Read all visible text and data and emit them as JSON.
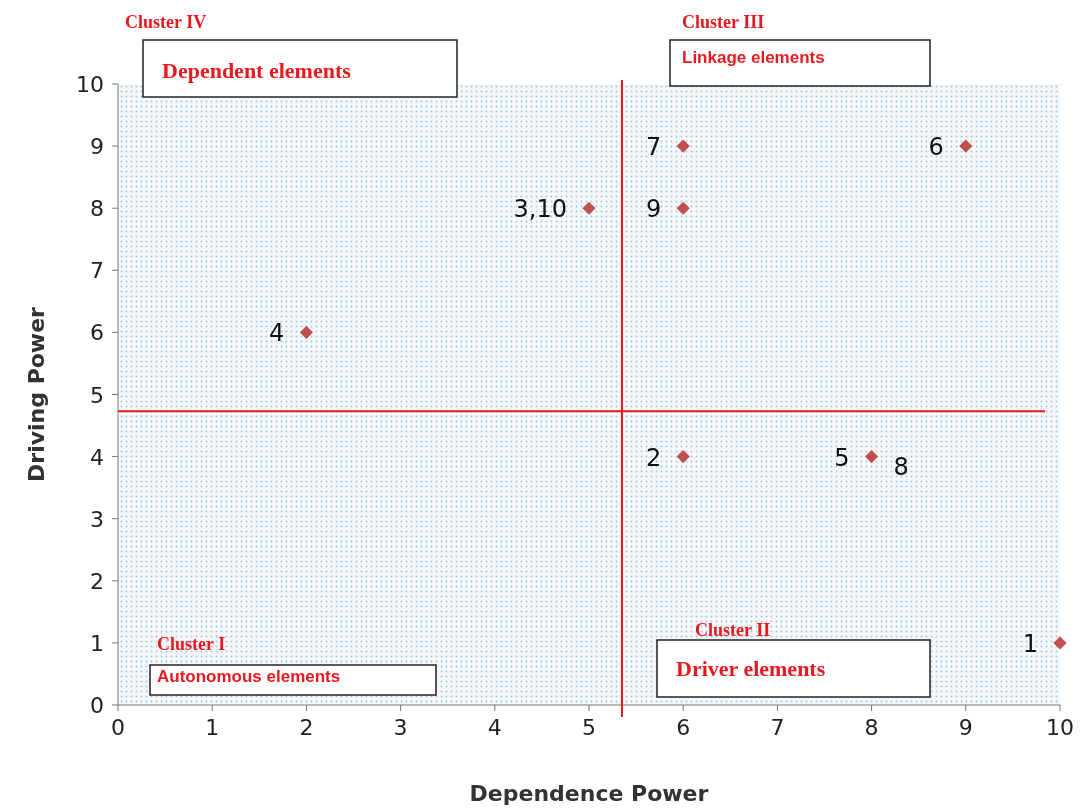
{
  "chart_data": {
    "type": "scatter",
    "xlabel": "Dependence Power",
    "ylabel": "Driving Power",
    "x": [
      2,
      5,
      6,
      6,
      9,
      6,
      8,
      10
    ],
    "series": [
      {
        "color": "#c0504d",
        "values": [
          6,
          8,
          9,
          8,
          9,
          4,
          4,
          1
        ]
      }
    ],
    "xlim": [
      0,
      10
    ],
    "ylim": [
      0,
      10
    ],
    "xticks": [
      0,
      1,
      2,
      3,
      4,
      5,
      6,
      7,
      8,
      9,
      10
    ],
    "yticks": [
      0,
      1,
      2,
      3,
      4,
      5,
      6,
      7,
      8,
      9,
      10
    ],
    "marker": "diamond",
    "grid": false,
    "ref_lines": [
      {
        "axis": "x",
        "value": 5.35,
        "color": "#e8191f"
      },
      {
        "axis": "y",
        "value": 4.73,
        "color": "#e8191f"
      }
    ],
    "annotations": [
      "Cluster IV",
      "Dependent elements",
      "Cluster III",
      "Linkage elements",
      "Cluster I",
      "Autonomous elements",
      "Cluster II",
      "Driver elements",
      {
        "text": "4",
        "x": 2,
        "y": 6
      },
      {
        "text": "3,10",
        "x": 5,
        "y": 8
      },
      {
        "text": "7",
        "x": 6,
        "y": 9
      },
      {
        "text": "9",
        "x": 6,
        "y": 8
      },
      {
        "text": "6",
        "x": 9,
        "y": 9
      },
      {
        "text": "2",
        "x": 6,
        "y": 4
      },
      {
        "text": "5",
        "x": 8,
        "y": 4
      },
      {
        "text": "1",
        "x": 10,
        "y": 1
      },
      {
        "text": "8",
        "x": 8,
        "y": 4
      }
    ]
  }
}
